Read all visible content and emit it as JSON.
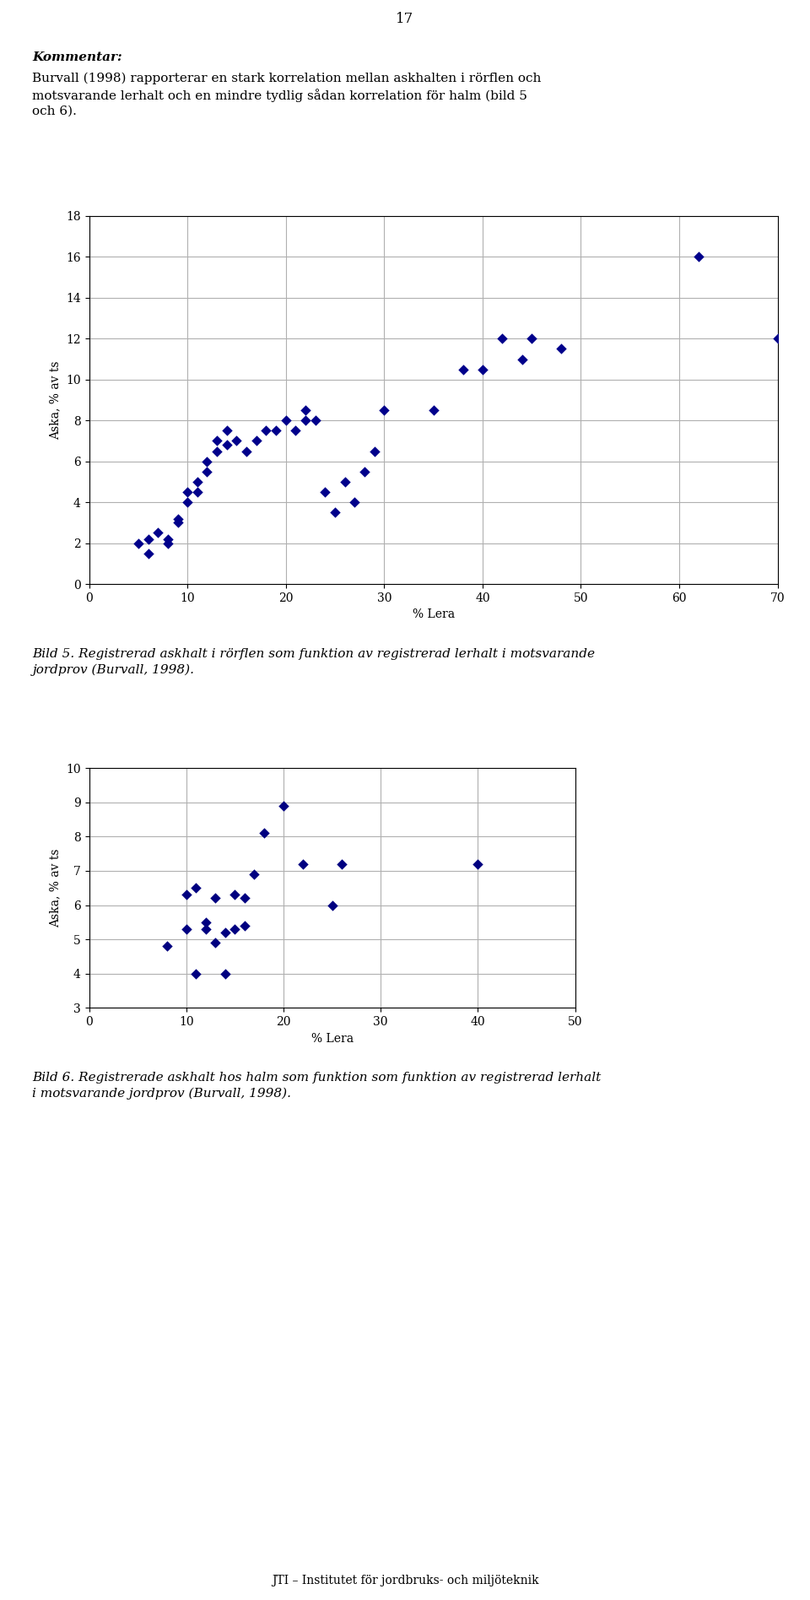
{
  "chart_data": [
    {
      "type": "scatter",
      "xlabel": "% Lera",
      "ylabel": "Aska, % av ts",
      "xlim": [
        0,
        70
      ],
      "ylim": [
        0,
        18
      ],
      "xticks": [
        0,
        10,
        20,
        30,
        40,
        50,
        60,
        70
      ],
      "yticks": [
        0,
        2,
        4,
        6,
        8,
        10,
        12,
        14,
        16,
        18
      ],
      "color": "#00008B",
      "marker": "diamond",
      "grid": true,
      "x": [
        5,
        6,
        6,
        7,
        8,
        8,
        9,
        9,
        10,
        10,
        11,
        11,
        12,
        12,
        13,
        13,
        14,
        14,
        15,
        16,
        17,
        18,
        19,
        20,
        21,
        22,
        22,
        23,
        24,
        25,
        26,
        27,
        28,
        29,
        30,
        35,
        38,
        40,
        42,
        44,
        45,
        48,
        62,
        70
      ],
      "values": [
        2.0,
        1.5,
        2.2,
        2.5,
        2.0,
        2.2,
        3.0,
        3.2,
        4.5,
        4.0,
        5.0,
        4.5,
        5.5,
        6.0,
        6.5,
        7.0,
        7.5,
        6.8,
        7.0,
        6.5,
        7.0,
        7.5,
        7.5,
        8.0,
        7.5,
        8.0,
        8.5,
        8.0,
        4.5,
        3.5,
        5.0,
        4.0,
        5.5,
        6.5,
        8.5,
        8.5,
        10.5,
        10.5,
        12.0,
        11.0,
        12.0,
        11.5,
        16.0,
        12.0
      ],
      "caption": "Bild 5. Registrerad askhalt i rörflen som funktion av registrerad lerhalt i motsvarande\njordprov (Burvall, 1998).",
      "annotations": [
        "17",
        "Kommentar:",
        "Burvall (1998) rapporterar en stark korrelation mellan askhalten i rörflen och\nmotsvarande lerhalt och en mindre tydlig sådan korrelation för halm (bild 5\noch 6).",
        "JTI – Institutet för jordbruks- och miljöteknik"
      ]
    },
    {
      "type": "scatter",
      "xlabel": "% Lera",
      "ylabel": "Aska, % av ts",
      "xlim": [
        0,
        50
      ],
      "ylim": [
        3,
        10
      ],
      "xticks": [
        0,
        10,
        20,
        30,
        40,
        50
      ],
      "yticks": [
        3,
        4,
        5,
        6,
        7,
        8,
        9,
        10
      ],
      "color": "#000080",
      "marker": "diamond",
      "grid": true,
      "x": [
        8,
        10,
        10,
        11,
        11,
        12,
        12,
        13,
        13,
        14,
        14,
        15,
        15,
        16,
        16,
        17,
        18,
        20,
        22,
        25,
        26,
        40
      ],
      "values": [
        4.8,
        5.3,
        6.3,
        4.0,
        6.5,
        5.3,
        5.5,
        4.9,
        6.2,
        4.0,
        5.2,
        5.3,
        6.3,
        6.2,
        5.4,
        6.9,
        8.1,
        8.9,
        7.2,
        6.0,
        7.2,
        7.2
      ],
      "caption": "Bild 6. Registrerade askhalt hos halm som funktion som funktion av registrerad lerhalt\ni motsvarande jordprov (Burvall, 1998)."
    }
  ]
}
